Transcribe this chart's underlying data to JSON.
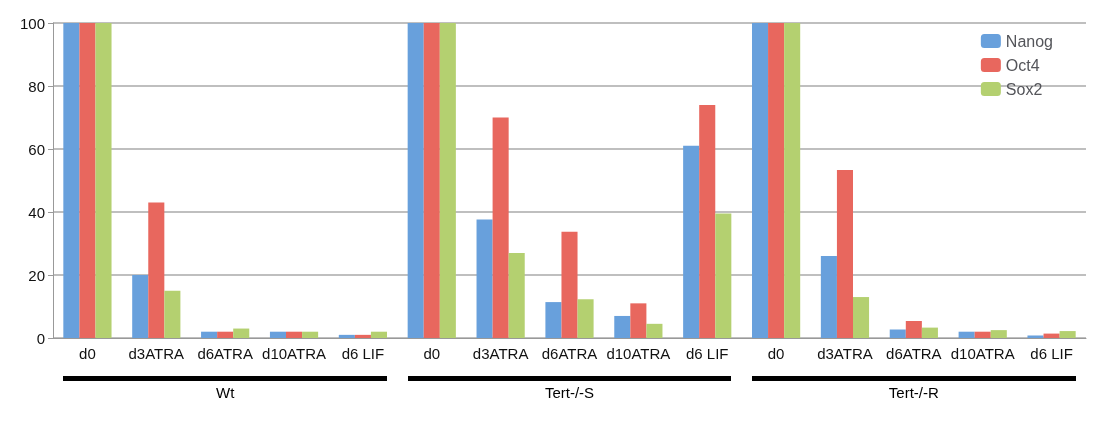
{
  "chart_data": {
    "type": "bar",
    "categories": [
      "d0",
      "d3ATRA",
      "d6ATRA",
      "d10ATRA",
      "d6 LIF",
      "d0",
      "d3ATRA",
      "d6ATRA",
      "d10ATRA",
      "d6 LIF",
      "d0",
      "d3ATRA",
      "d6ATRA",
      "d10ATRA",
      "d6 LIF"
    ],
    "series": [
      {
        "name": "Nanog",
        "color": "#68a0dc",
        "values": [
          100,
          20,
          2,
          2,
          1,
          100,
          37.6,
          11.4,
          7,
          61,
          100,
          26,
          2.7,
          2,
          0.8
        ]
      },
      {
        "name": "Oct4",
        "color": "#e8675e",
        "values": [
          100,
          43,
          2,
          2,
          1,
          100,
          70,
          33.7,
          11,
          74,
          100,
          53.3,
          5.4,
          2,
          1.4
        ]
      },
      {
        "name": "Sox2",
        "color": "#b4d070",
        "values": [
          100,
          15,
          3,
          2,
          2,
          100,
          27,
          12.3,
          4.5,
          39.5,
          100,
          13,
          3.3,
          2.5,
          2.2
        ]
      }
    ],
    "annotations": [
      "Wt",
      "Tert-/-S",
      "Tert-/-R"
    ],
    "ylim": [
      0,
      100
    ],
    "yticks": [
      0,
      20,
      40,
      60,
      80,
      100
    ],
    "grid": "y",
    "legend": "top right"
  }
}
